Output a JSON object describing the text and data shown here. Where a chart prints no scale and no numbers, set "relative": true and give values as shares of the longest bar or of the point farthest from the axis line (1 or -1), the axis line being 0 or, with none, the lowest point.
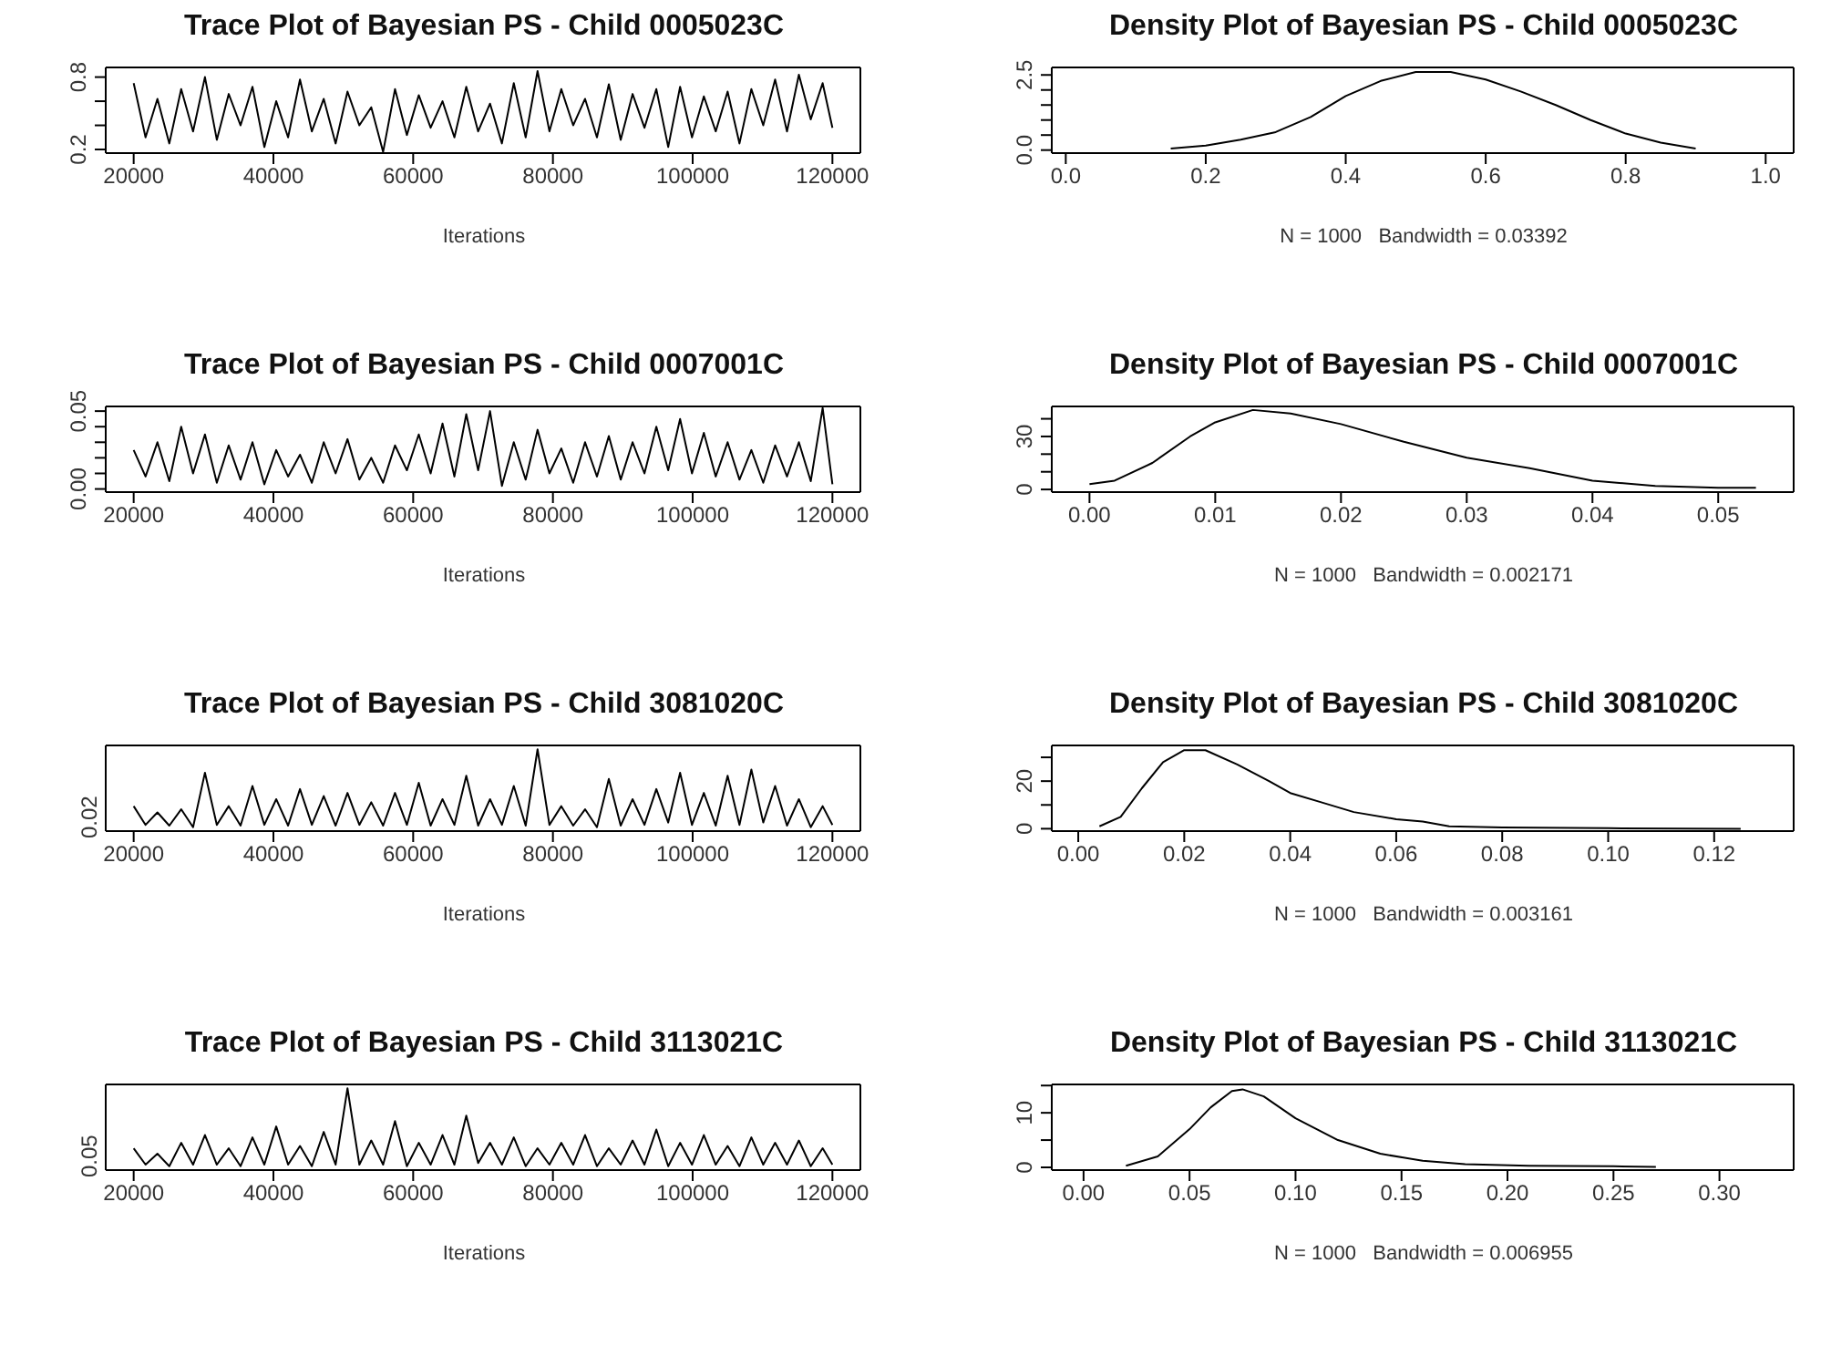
{
  "chart_data": [
    {
      "type": "line",
      "title": "Trace Plot of Bayesian PS - Child 0005023C",
      "xlabel": "Iterations",
      "xlim": [
        16000,
        124000
      ],
      "xticks": [
        20000,
        40000,
        60000,
        80000,
        100000,
        120000
      ],
      "ylim": [
        0.17,
        0.88
      ],
      "yticks": [
        {
          "value": 0.2,
          "label": "0.2"
        },
        {
          "value": 0.4,
          "label": null
        },
        {
          "value": 0.6,
          "label": null
        },
        {
          "value": 0.8,
          "label": "0.8"
        }
      ],
      "series": [
        {
          "color": "#000000",
          "x": [
            20000,
            21700,
            23400,
            25100,
            26800,
            28500,
            30200,
            31900,
            33600,
            35300,
            37000,
            38700,
            40400,
            42100,
            43800,
            45500,
            47200,
            48900,
            50600,
            52300,
            54000,
            55700,
            57400,
            59100,
            60800,
            62500,
            64200,
            65900,
            67600,
            69300,
            71000,
            72700,
            74400,
            76100,
            77800,
            79500,
            81200,
            82900,
            84600,
            86300,
            88000,
            89700,
            91400,
            93100,
            94800,
            96500,
            98200,
            99900,
            101600,
            103300,
            105000,
            106700,
            108400,
            110100,
            111800,
            113500,
            115200,
            116900,
            118600,
            120000
          ],
          "values": [
            0.75,
            0.3,
            0.62,
            0.25,
            0.7,
            0.35,
            0.8,
            0.28,
            0.66,
            0.4,
            0.72,
            0.22,
            0.6,
            0.3,
            0.78,
            0.35,
            0.62,
            0.25,
            0.68,
            0.4,
            0.55,
            0.18,
            0.7,
            0.32,
            0.65,
            0.38,
            0.6,
            0.3,
            0.72,
            0.35,
            0.58,
            0.25,
            0.75,
            0.3,
            0.85,
            0.35,
            0.7,
            0.4,
            0.62,
            0.3,
            0.74,
            0.28,
            0.66,
            0.38,
            0.7,
            0.22,
            0.72,
            0.3,
            0.64,
            0.35,
            0.68,
            0.25,
            0.7,
            0.4,
            0.78,
            0.35,
            0.82,
            0.45,
            0.75,
            0.38
          ]
        }
      ]
    },
    {
      "type": "line",
      "title": "Density Plot of Bayesian PS - Child 0005023C",
      "xlabel": "N = 1000   Bandwidth = 0.03392",
      "xlim": [
        -0.02,
        1.04
      ],
      "xticks": [
        {
          "value": 0,
          "label": "0.0"
        },
        0.2,
        0.4,
        0.6,
        0.8,
        {
          "value": 1,
          "label": "1.0"
        }
      ],
      "ylim": [
        -0.1,
        2.75
      ],
      "yticks": [
        {
          "value": 0,
          "label": "0.0"
        },
        {
          "value": 0.5,
          "label": null
        },
        {
          "value": 1,
          "label": null
        },
        {
          "value": 1.5,
          "label": null
        },
        {
          "value": 2,
          "label": null
        },
        {
          "value": 2.5,
          "label": "2.5"
        }
      ],
      "series": [
        {
          "color": "#000000",
          "x": [
            0.15,
            0.2,
            0.25,
            0.3,
            0.35,
            0.4,
            0.45,
            0.5,
            0.55,
            0.6,
            0.65,
            0.7,
            0.75,
            0.8,
            0.85,
            0.9
          ],
          "values": [
            0.05,
            0.15,
            0.35,
            0.6,
            1.1,
            1.8,
            2.3,
            2.6,
            2.6,
            2.35,
            1.95,
            1.5,
            1.0,
            0.55,
            0.25,
            0.05
          ]
        }
      ]
    },
    {
      "type": "line",
      "title": "Trace Plot of Bayesian PS - Child 0007001C",
      "xlabel": "Iterations",
      "xlim": [
        16000,
        124000
      ],
      "xticks": [
        20000,
        40000,
        60000,
        80000,
        100000,
        120000
      ],
      "ylim": [
        -0.002,
        0.053
      ],
      "yticks": [
        {
          "value": 0,
          "label": "0.00"
        },
        {
          "value": 0.01,
          "label": null
        },
        {
          "value": 0.02,
          "label": null
        },
        {
          "value": 0.03,
          "label": null
        },
        {
          "value": 0.04,
          "label": null
        },
        0.05
      ],
      "series": [
        {
          "color": "#000000",
          "x": [
            20000,
            21700,
            23400,
            25100,
            26800,
            28500,
            30200,
            31900,
            33600,
            35300,
            37000,
            38700,
            40400,
            42100,
            43800,
            45500,
            47200,
            48900,
            50600,
            52300,
            54000,
            55700,
            57400,
            59100,
            60800,
            62500,
            64200,
            65900,
            67600,
            69300,
            71000,
            72700,
            74400,
            76100,
            77800,
            79500,
            81200,
            82900,
            84600,
            86300,
            88000,
            89700,
            91400,
            93100,
            94800,
            96500,
            98200,
            99900,
            101600,
            103300,
            105000,
            106700,
            108400,
            110100,
            111800,
            113500,
            115200,
            116900,
            118600,
            120000
          ],
          "values": [
            0.025,
            0.008,
            0.03,
            0.005,
            0.04,
            0.01,
            0.035,
            0.004,
            0.028,
            0.006,
            0.03,
            0.003,
            0.025,
            0.008,
            0.022,
            0.004,
            0.03,
            0.01,
            0.032,
            0.006,
            0.02,
            0.004,
            0.028,
            0.012,
            0.035,
            0.01,
            0.042,
            0.008,
            0.048,
            0.012,
            0.05,
            0.002,
            0.03,
            0.006,
            0.038,
            0.01,
            0.026,
            0.004,
            0.03,
            0.008,
            0.034,
            0.006,
            0.03,
            0.01,
            0.04,
            0.012,
            0.045,
            0.01,
            0.036,
            0.008,
            0.03,
            0.006,
            0.025,
            0.004,
            0.028,
            0.008,
            0.03,
            0.005,
            0.052,
            0.003
          ]
        }
      ]
    },
    {
      "type": "line",
      "title": "Density Plot of Bayesian PS - Child 0007001C",
      "xlabel": "N = 1000   Bandwidth = 0.002171",
      "xlim": [
        -0.003,
        0.056
      ],
      "xticks": [
        {
          "value": 0,
          "label": "0.00"
        },
        0.01,
        0.02,
        0.03,
        0.04,
        0.05
      ],
      "ylim": [
        -1.5,
        47
      ],
      "yticks": [
        0,
        {
          "value": 10,
          "label": null
        },
        {
          "value": 20,
          "label": null
        },
        30,
        {
          "value": 40,
          "label": null
        }
      ],
      "series": [
        {
          "color": "#000000",
          "x": [
            0,
            0.002,
            0.005,
            0.008,
            0.01,
            0.013,
            0.016,
            0.02,
            0.025,
            0.03,
            0.035,
            0.04,
            0.045,
            0.05,
            0.053
          ],
          "values": [
            3,
            5,
            15,
            30,
            38,
            45,
            43,
            37,
            27,
            18,
            12,
            5,
            2,
            1,
            1
          ]
        }
      ]
    },
    {
      "type": "line",
      "title": "Trace Plot of Bayesian PS - Child 3081020C",
      "xlabel": "Iterations",
      "xlim": [
        16000,
        124000
      ],
      "xticks": [
        20000,
        40000,
        60000,
        80000,
        100000,
        120000
      ],
      "relative": true,
      "annotations": [
        "0.02"
      ],
      "series": [
        {
          "color": "#000000",
          "x": [
            20000,
            21700,
            23400,
            25100,
            26800,
            28500,
            30200,
            31900,
            33600,
            35300,
            37000,
            38700,
            40400,
            42100,
            43800,
            45500,
            47200,
            48900,
            50600,
            52300,
            54000,
            55700,
            57400,
            59100,
            60800,
            62500,
            64200,
            65900,
            67600,
            69300,
            71000,
            72700,
            74400,
            76100,
            77800,
            79500,
            81200,
            82900,
            84600,
            86300,
            88000,
            89700,
            91400,
            93100,
            94800,
            96500,
            98200,
            99900,
            101600,
            103300,
            105000,
            106700,
            108400,
            110100,
            111800,
            113500,
            115200,
            116900,
            118600,
            120000
          ],
          "values": [
            0.27,
            0.03,
            0.19,
            0.02,
            0.23,
            0,
            0.7,
            0.03,
            0.27,
            0.02,
            0.53,
            0.03,
            0.36,
            0.02,
            0.49,
            0.03,
            0.4,
            0.02,
            0.44,
            0.03,
            0.32,
            0.02,
            0.44,
            0.03,
            0.57,
            0.02,
            0.36,
            0.03,
            0.66,
            0.02,
            0.36,
            0.03,
            0.53,
            0.02,
            1,
            0.03,
            0.27,
            0.02,
            0.23,
            0,
            0.62,
            0.02,
            0.36,
            0.03,
            0.49,
            0.06,
            0.7,
            0.03,
            0.44,
            0.02,
            0.66,
            0.03,
            0.74,
            0.06,
            0.53,
            0.02,
            0.36,
            0,
            0.27,
            0.03
          ]
        }
      ]
    },
    {
      "type": "line",
      "title": "Density Plot of Bayesian PS - Child 3081020C",
      "xlabel": "N = 1000   Bandwidth = 0.003161",
      "xlim": [
        -0.005,
        0.135
      ],
      "xticks": [
        {
          "value": 0,
          "label": "0.00"
        },
        0.02,
        0.04,
        0.06,
        0.08,
        {
          "value": 0.1,
          "label": "0.10"
        },
        0.12
      ],
      "ylim": [
        -1,
        35
      ],
      "yticks": [
        0,
        {
          "value": 10,
          "label": null
        },
        20,
        {
          "value": 30,
          "label": null
        }
      ],
      "series": [
        {
          "color": "#000000",
          "x": [
            0.004,
            0.008,
            0.012,
            0.016,
            0.02,
            0.024,
            0.03,
            0.036,
            0.04,
            0.046,
            0.052,
            0.06,
            0.065,
            0.07,
            0.08,
            0.1,
            0.125
          ],
          "values": [
            1,
            5,
            17,
            28,
            33,
            33,
            27,
            20,
            15,
            11,
            7,
            4,
            3,
            1,
            0.5,
            0.2,
            0
          ]
        }
      ]
    },
    {
      "type": "line",
      "title": "Trace Plot of Bayesian PS - Child 3113021C",
      "xlabel": "Iterations",
      "xlim": [
        16000,
        124000
      ],
      "xticks": [
        20000,
        40000,
        60000,
        80000,
        100000,
        120000
      ],
      "relative": true,
      "annotations": [
        "0.05"
      ],
      "series": [
        {
          "color": "#000000",
          "x": [
            20000,
            21700,
            23400,
            25100,
            26800,
            28500,
            30200,
            31900,
            33600,
            35300,
            37000,
            38700,
            40400,
            42100,
            43800,
            45500,
            47200,
            48900,
            50600,
            52300,
            54000,
            55700,
            57400,
            59100,
            60800,
            62500,
            64200,
            65900,
            67600,
            69300,
            71000,
            72700,
            74400,
            76100,
            77800,
            79500,
            81200,
            82900,
            84600,
            86300,
            88000,
            89700,
            91400,
            93100,
            94800,
            96500,
            98200,
            99900,
            101600,
            103300,
            105000,
            106700,
            108400,
            110100,
            111800,
            113500,
            115200,
            116900,
            118600,
            120000
          ],
          "values": [
            0.23,
            0.02,
            0.16,
            0,
            0.3,
            0.02,
            0.4,
            0.02,
            0.23,
            0,
            0.37,
            0.02,
            0.51,
            0.02,
            0.26,
            0,
            0.44,
            0.02,
            1,
            0.02,
            0.33,
            0.02,
            0.58,
            0,
            0.3,
            0.02,
            0.4,
            0.02,
            0.65,
            0.04,
            0.3,
            0.02,
            0.37,
            0,
            0.23,
            0.02,
            0.3,
            0.02,
            0.4,
            0,
            0.23,
            0.02,
            0.33,
            0.02,
            0.47,
            0,
            0.3,
            0.02,
            0.4,
            0.02,
            0.26,
            0,
            0.37,
            0.02,
            0.3,
            0.02,
            0.33,
            0,
            0.23,
            0.02
          ]
        }
      ]
    },
    {
      "type": "line",
      "title": "Density Plot of Bayesian PS - Child 3113021C",
      "xlabel": "N = 1000   Bandwidth = 0.006955",
      "xlim": [
        -0.015,
        0.335
      ],
      "xticks": [
        {
          "value": 0,
          "label": "0.00"
        },
        0.05,
        {
          "value": 0.1,
          "label": "0.10"
        },
        0.15,
        {
          "value": 0.2,
          "label": "0.20"
        },
        0.25,
        {
          "value": 0.3,
          "label": "0.30"
        }
      ],
      "ylim": [
        -0.5,
        15.2
      ],
      "yticks": [
        0,
        {
          "value": 5,
          "label": null
        },
        10,
        {
          "value": 15,
          "label": null
        }
      ],
      "series": [
        {
          "color": "#000000",
          "x": [
            0.02,
            0.035,
            0.05,
            0.06,
            0.07,
            0.075,
            0.085,
            0.1,
            0.12,
            0.14,
            0.16,
            0.18,
            0.21,
            0.25,
            0.27
          ],
          "values": [
            0.3,
            2,
            7,
            11,
            14,
            14.3,
            13,
            9,
            5,
            2.5,
            1.2,
            0.6,
            0.3,
            0.2,
            0.1
          ]
        }
      ]
    }
  ]
}
